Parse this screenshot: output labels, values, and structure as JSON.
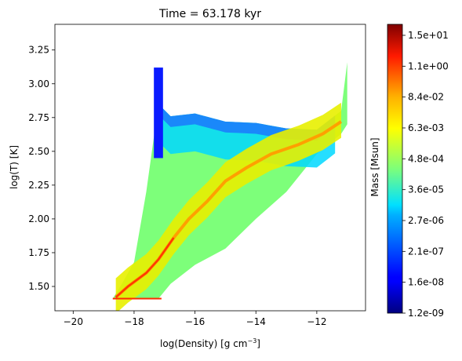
{
  "chart_data": {
    "type": "heatmap",
    "title": "Time = 63.178 kyr",
    "xlabel": "log(Density) [g cm",
    "xlabel_sup": "−3",
    "xlabel_close": "]",
    "ylabel": "log(T) [K]",
    "xlim": [
      -20.6,
      -10.4
    ],
    "ylim": [
      1.32,
      3.44
    ],
    "x_ticks": [
      -20,
      -18,
      -16,
      -14,
      -12
    ],
    "x_tick_labels": [
      "−20",
      "−18",
      "−16",
      "−14",
      "−12"
    ],
    "y_ticks": [
      1.5,
      1.75,
      2.0,
      2.25,
      2.5,
      2.75,
      3.0,
      3.25
    ],
    "y_tick_labels": [
      "1.50",
      "1.75",
      "2.00",
      "2.25",
      "2.50",
      "2.75",
      "3.00",
      "3.25"
    ],
    "grid": false,
    "colorbar": {
      "label": "Mass [Msun]",
      "colormap": "jet",
      "scale": "log",
      "tick_labels": [
        "1.2e-09",
        "1.6e-08",
        "2.1e-07",
        "2.7e-06",
        "3.6e-05",
        "4.8e-04",
        "6.3e-03",
        "8.4e-02",
        "1.1e+00",
        "1.5e+01"
      ]
    },
    "distribution": {
      "envelope": [
        {
          "x": -18.7,
          "y_min": 1.41,
          "y_max": 1.41
        },
        {
          "x": -18.4,
          "y_min": 1.41,
          "y_max": 1.52
        },
        {
          "x": -18.0,
          "y_min": 1.41,
          "y_max": 1.68
        },
        {
          "x": -17.6,
          "y_min": 1.41,
          "y_max": 2.2
        },
        {
          "x": -17.2,
          "y_min": 1.41,
          "y_max": 2.85
        },
        {
          "x": -16.8,
          "y_min": 1.52,
          "y_max": 2.76
        },
        {
          "x": -16.0,
          "y_min": 1.66,
          "y_max": 2.78
        },
        {
          "x": -15.0,
          "y_min": 1.78,
          "y_max": 2.72
        },
        {
          "x": -14.0,
          "y_min": 2.0,
          "y_max": 2.71
        },
        {
          "x": -13.0,
          "y_min": 2.2,
          "y_max": 2.67
        },
        {
          "x": -12.0,
          "y_min": 2.48,
          "y_max": 2.66
        },
        {
          "x": -11.2,
          "y_min": 2.63,
          "y_max": 2.8
        },
        {
          "x": -11.0,
          "y_min": 2.7,
          "y_max": 3.16
        }
      ],
      "ridge": [
        {
          "x": -18.6,
          "y": 1.42
        },
        {
          "x": -18.2,
          "y": 1.5
        },
        {
          "x": -17.6,
          "y": 1.6
        },
        {
          "x": -17.2,
          "y": 1.7
        },
        {
          "x": -16.7,
          "y": 1.86
        },
        {
          "x": -16.2,
          "y": 2.0
        },
        {
          "x": -15.6,
          "y": 2.13
        },
        {
          "x": -15.0,
          "y": 2.28
        },
        {
          "x": -14.3,
          "y": 2.38
        },
        {
          "x": -13.5,
          "y": 2.48
        },
        {
          "x": -12.6,
          "y": 2.55
        },
        {
          "x": -11.8,
          "y": 2.63
        },
        {
          "x": -11.2,
          "y": 2.72
        }
      ],
      "cold_column": {
        "x_min": -17.35,
        "x_max": -17.05,
        "y_min": 2.45,
        "y_max": 3.12
      }
    }
  }
}
